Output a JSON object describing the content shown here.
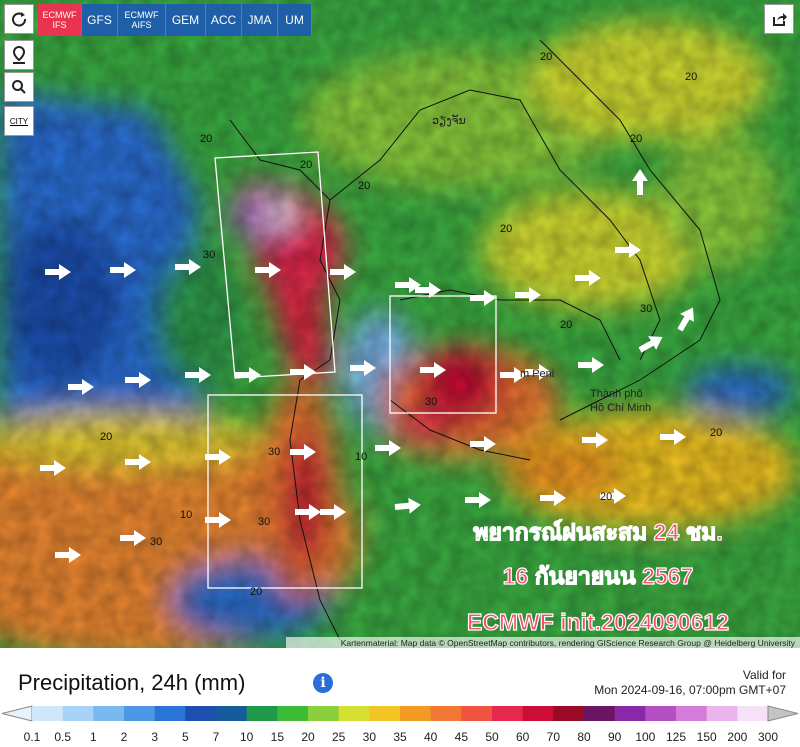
{
  "toolbar": {
    "models": [
      "ECMWF IFS",
      "GFS",
      "ECMWF AIFS",
      "GEM",
      "ACC",
      "JMA",
      "UM"
    ],
    "active": "ECMWF IFS",
    "city": "CITY"
  },
  "map": {
    "overlay_lines": [
      "พยากรณ์ฝนสะสม 24 ชม.",
      "16 กันยายนน 2567",
      "ECMWF init.2024090612"
    ],
    "places": [
      "m Peni",
      "Thành phố",
      "Hồ Chí Minh",
      "ວຽງຈັນ"
    ],
    "contour_labels": [
      "20",
      "20",
      "30",
      "20",
      "20",
      "20",
      "30",
      "20",
      "10",
      "30",
      "20",
      "20",
      "30",
      "20",
      "20",
      "30",
      "20",
      "10",
      "20",
      "30"
    ],
    "attribution": "Kartenmaterial: Map data © OpenStreetMap contributors, rendering GIScience Research Group @ Heidelberg University"
  },
  "legend": {
    "title": "Precipitation, 24h (mm)",
    "valid_label": "Valid for",
    "valid_time": "Mon 2024-09-16, 07:00pm GMT+07",
    "ticks": [
      0.1,
      0.5,
      1,
      2,
      3,
      5,
      7,
      10,
      15,
      20,
      25,
      30,
      35,
      40,
      45,
      50,
      60,
      70,
      80,
      90,
      100,
      125,
      150,
      200,
      300
    ],
    "colors": [
      "#cfe6fb",
      "#a8d2f7",
      "#7ab8f0",
      "#4c98e6",
      "#2a74d6",
      "#1d4fae",
      "#155a9a",
      "#1f9a4a",
      "#3cbc36",
      "#8ccf3c",
      "#d6e032",
      "#f3c524",
      "#f39a22",
      "#f07832",
      "#ee5440",
      "#e6284e",
      "#cc0e36",
      "#9a0a26",
      "#6c1464",
      "#8a28a8",
      "#b64ec6",
      "#d47cd8",
      "#ecb4ec",
      "#f6e2f6"
    ]
  }
}
